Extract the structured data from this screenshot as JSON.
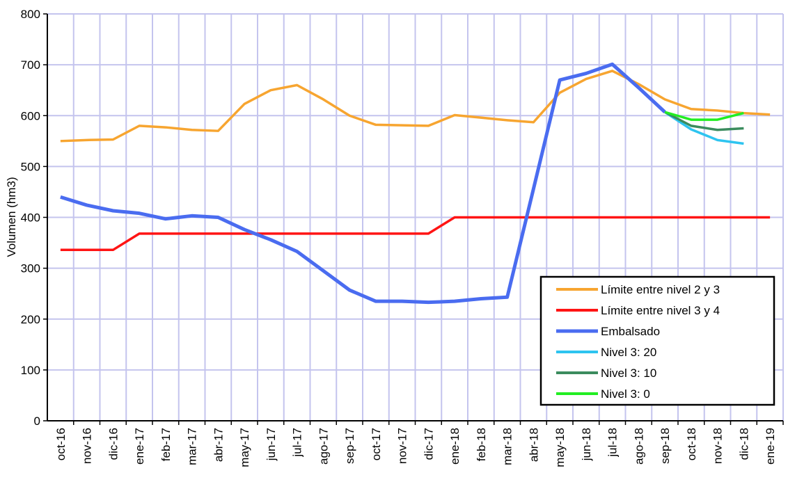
{
  "chart_data": {
    "type": "line",
    "y_label": "Volumen (hm3)",
    "categories": [
      "oct-16",
      "nov-16",
      "dic-16",
      "ene-17",
      "feb-17",
      "mar-17",
      "abr-17",
      "may-17",
      "jun-17",
      "jul-17",
      "ago-17",
      "sep-17",
      "oct-17",
      "nov-17",
      "dic-17",
      "ene-18",
      "feb-18",
      "mar-18",
      "abr-18",
      "may-18",
      "jun-18",
      "jul-18",
      "ago-18",
      "sep-18",
      "oct-18",
      "nov-18",
      "dic-18",
      "ene-19"
    ],
    "series": [
      {
        "name": "Límite entre nivel 2 y 3",
        "color": "#f7a530",
        "values": [
          550,
          552,
          553,
          580,
          577,
          572,
          570,
          623,
          650,
          660,
          632,
          600,
          582,
          581,
          580,
          601,
          596,
          591,
          587,
          645,
          672,
          688,
          662,
          632,
          613,
          610,
          605,
          602
        ]
      },
      {
        "name": "Límite entre nivel 3 y 4",
        "color": "#ff1414",
        "values": [
          336,
          336,
          336,
          368,
          368,
          368,
          368,
          368,
          368,
          368,
          368,
          368,
          368,
          368,
          368,
          400,
          400,
          400,
          400,
          400,
          400,
          400,
          400,
          400,
          400,
          400,
          400,
          400
        ]
      },
      {
        "name": "Embalsado",
        "color": "#4a6cf0",
        "values": [
          440,
          424,
          413,
          408,
          397,
          403,
          400,
          376,
          356,
          333,
          295,
          257,
          235,
          235,
          233,
          235,
          240,
          243,
          456,
          670,
          683,
          701,
          655,
          607,
          null,
          null,
          null,
          null
        ]
      },
      {
        "name": "Nivel 3: 20",
        "color": "#2ec4f0",
        "values": [
          null,
          null,
          null,
          null,
          null,
          null,
          null,
          null,
          null,
          null,
          null,
          null,
          null,
          null,
          null,
          null,
          null,
          null,
          null,
          null,
          null,
          null,
          null,
          607,
          573,
          552,
          545,
          null
        ]
      },
      {
        "name": "Nivel 3: 10",
        "color": "#3b8c5e",
        "values": [
          null,
          null,
          null,
          null,
          null,
          null,
          null,
          null,
          null,
          null,
          null,
          null,
          null,
          null,
          null,
          null,
          null,
          null,
          null,
          null,
          null,
          null,
          null,
          607,
          580,
          572,
          575,
          null
        ]
      },
      {
        "name": "Nivel 3: 0",
        "color": "#22ee22",
        "values": [
          null,
          null,
          null,
          null,
          null,
          null,
          null,
          null,
          null,
          null,
          null,
          null,
          null,
          null,
          null,
          null,
          null,
          null,
          null,
          null,
          null,
          null,
          null,
          607,
          592,
          592,
          605,
          null
        ]
      }
    ],
    "ylim": [
      0,
      800
    ],
    "yticks": [
      0,
      100,
      200,
      300,
      400,
      500,
      600,
      700,
      800
    ],
    "grid": true,
    "legend": "lower right"
  }
}
